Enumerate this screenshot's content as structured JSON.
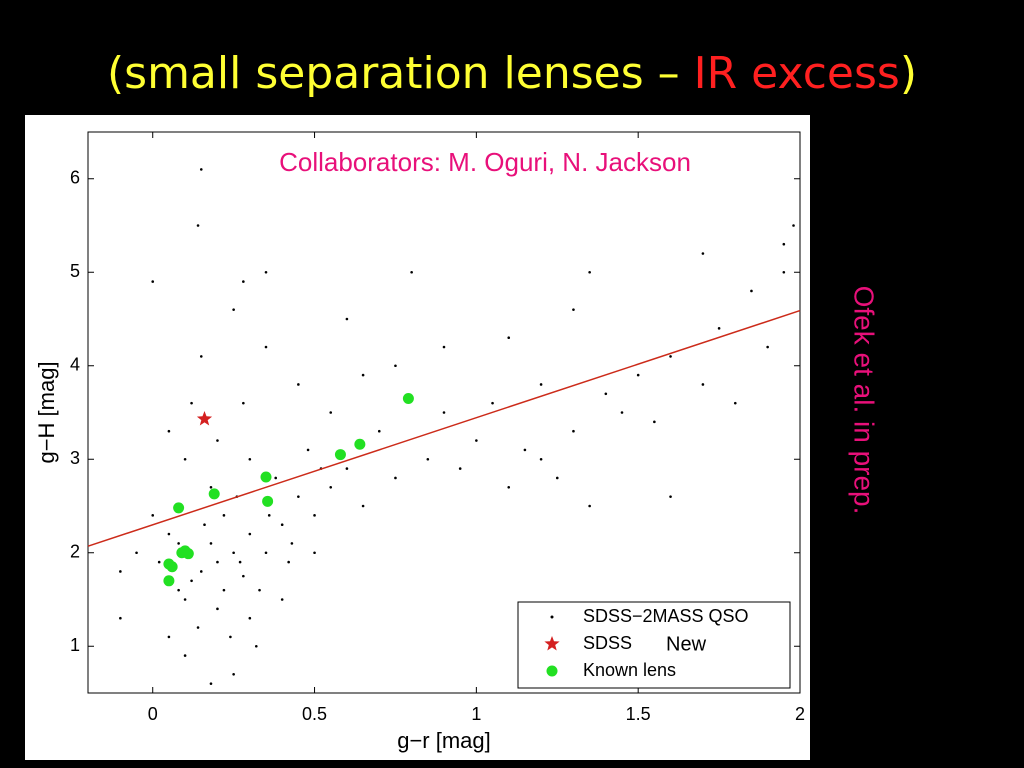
{
  "title_parts": [
    "(small separation lenses – ",
    "IR excess",
    ")"
  ],
  "side_note": "Ofek et al. in prep.",
  "chart_data": {
    "type": "scatter",
    "annotation": "Collaborators: M. Oguri, N. Jackson",
    "legend_note": "New",
    "xlabel": "g−r [mag]",
    "ylabel": "g−H [mag]",
    "xlim": [
      -0.2,
      2.0
    ],
    "ylim": [
      0.5,
      6.5
    ],
    "xticks": [
      0,
      0.5,
      1,
      1.5,
      2
    ],
    "yticks": [
      1,
      2,
      3,
      4,
      5,
      6
    ],
    "legend": "lower right",
    "series": [
      {
        "name": "SDSS−2MASS QSO",
        "marker": "dot",
        "color": "#000000",
        "x": [
          0.2,
          0.25,
          0.15,
          0.3,
          0.22,
          0.12,
          0.28,
          0.18,
          0.35,
          0.4,
          0.1,
          0.05,
          0.02,
          0.33,
          0.45,
          0.5,
          0.38,
          0.26,
          0.16,
          0.08,
          0.2,
          0.3,
          0.14,
          0.24,
          0.42,
          0.55,
          0.6,
          0.48,
          0.3,
          0.2,
          0.1,
          0.0,
          -0.05,
          -0.1,
          0.4,
          0.5,
          0.65,
          0.7,
          0.75,
          0.85,
          0.9,
          0.95,
          1.0,
          1.05,
          1.1,
          1.15,
          1.2,
          1.3,
          1.35,
          1.4,
          1.5,
          1.55,
          1.6,
          1.7,
          1.75,
          1.8,
          1.85,
          1.9,
          1.95,
          1.98,
          1.3,
          1.1,
          0.9,
          0.6,
          0.45,
          0.35,
          0.25,
          0.15,
          0.05,
          0.0,
          0.35,
          0.14,
          0.28,
          0.8,
          1.35,
          1.7,
          1.95,
          0.15,
          0.55,
          0.65,
          0.75,
          1.2,
          1.25,
          1.45,
          1.6,
          0.05,
          0.18,
          0.25,
          0.1,
          -0.1,
          0.32,
          0.28,
          0.12,
          0.18,
          0.22,
          0.27,
          0.08,
          0.36,
          0.43,
          0.52
        ],
        "values": [
          1.9,
          2.0,
          1.8,
          2.2,
          2.4,
          1.7,
          1.75,
          2.1,
          2.0,
          2.3,
          1.5,
          2.2,
          1.9,
          1.6,
          2.6,
          2.4,
          2.8,
          2.6,
          2.3,
          1.6,
          1.4,
          1.3,
          1.2,
          1.1,
          1.9,
          2.7,
          2.9,
          3.1,
          3.0,
          3.2,
          3.0,
          2.4,
          2.0,
          1.8,
          1.5,
          2.0,
          2.5,
          3.3,
          2.8,
          3.0,
          3.5,
          2.9,
          3.2,
          3.6,
          2.7,
          3.1,
          3.8,
          3.3,
          2.5,
          3.7,
          3.9,
          3.4,
          4.1,
          3.8,
          4.4,
          3.6,
          4.8,
          4.2,
          5.3,
          5.5,
          4.6,
          4.3,
          4.2,
          4.5,
          3.8,
          4.2,
          4.6,
          4.1,
          3.3,
          4.9,
          5.0,
          5.5,
          4.9,
          5.0,
          5.0,
          5.2,
          5.0,
          6.1,
          3.5,
          3.9,
          4.0,
          3.0,
          2.8,
          3.5,
          2.6,
          1.1,
          0.6,
          0.7,
          0.9,
          1.3,
          1.0,
          3.6,
          3.6,
          2.7,
          1.6,
          1.9,
          2.1,
          2.4,
          2.1,
          2.9
        ]
      },
      {
        "name": "SDSS",
        "marker": "star",
        "color": "#d42020",
        "x": [
          0.16
        ],
        "values": [
          3.43
        ]
      },
      {
        "name": "Known lens",
        "marker": "circle",
        "color": "#22e022",
        "x": [
          0.08,
          0.19,
          0.35,
          0.355,
          0.58,
          0.64,
          0.79,
          0.09,
          0.11,
          0.05,
          0.06,
          0.05,
          0.1
        ],
        "values": [
          2.48,
          2.63,
          2.81,
          2.55,
          3.05,
          3.16,
          3.65,
          2.0,
          1.99,
          1.88,
          1.85,
          1.7,
          2.02
        ]
      },
      {
        "marker": "line",
        "color": "#cc2b1a",
        "x": [
          -0.2,
          2.0
        ],
        "values": [
          2.07,
          4.59
        ]
      }
    ]
  }
}
